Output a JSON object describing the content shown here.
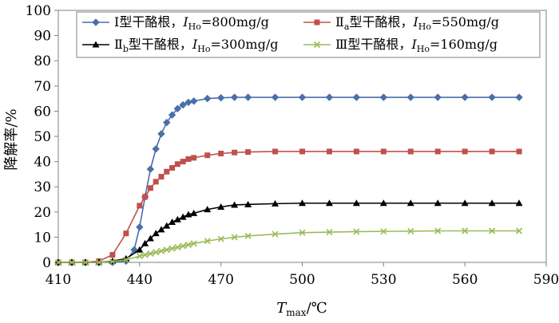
{
  "chart_data": {
    "type": "line",
    "xlabel": {
      "main": "T",
      "sub": "max",
      "unit": "/℃"
    },
    "ylabel": "降解率/%",
    "xlim": [
      410,
      590
    ],
    "ylim": [
      0,
      100
    ],
    "xticks": [
      410,
      440,
      470,
      500,
      530,
      560,
      590
    ],
    "yticks": [
      0,
      10,
      20,
      30,
      40,
      50,
      60,
      70,
      80,
      90,
      100
    ],
    "grid": false,
    "legend": "top",
    "series": [
      {
        "name": "Ⅰ型干酪根，IHo=800mg/g",
        "legend": {
          "pre": "Ⅰ型干酪根，",
          "var": "I",
          "sub": "Ho",
          "post": "=800mg/g"
        },
        "color": "#4a6fa9",
        "marker": "diamond",
        "x": [
          410,
          415,
          420,
          425,
          430,
          435,
          438,
          440,
          442,
          444,
          446,
          448,
          450,
          452,
          454,
          456,
          458,
          460,
          465,
          470,
          475,
          480,
          490,
          500,
          510,
          520,
          530,
          540,
          550,
          560,
          570,
          580
        ],
        "y": [
          0,
          0,
          0,
          0,
          0,
          0.5,
          5,
          14,
          26,
          37,
          45,
          51,
          55.5,
          58.5,
          61,
          62.5,
          63.5,
          64,
          65,
          65.3,
          65.5,
          65.5,
          65.5,
          65.5,
          65.5,
          65.5,
          65.5,
          65.5,
          65.5,
          65.5,
          65.5,
          65.5
        ]
      },
      {
        "name": "Ⅱa型干酪根，IHo=550mg/g",
        "legend": {
          "pre": "Ⅱ",
          "presub": "a",
          "pre2": "型干酪根，",
          "var": "I",
          "sub": "Ho",
          "post": "=550mg/g"
        },
        "color": "#c0504d",
        "marker": "square",
        "x": [
          410,
          415,
          420,
          425,
          430,
          435,
          440,
          442,
          444,
          446,
          448,
          450,
          452,
          454,
          456,
          458,
          460,
          465,
          470,
          475,
          480,
          490,
          500,
          510,
          520,
          530,
          540,
          550,
          560,
          570,
          580
        ],
        "y": [
          0,
          0,
          0,
          0.5,
          3,
          11.5,
          22.5,
          26,
          29.5,
          32,
          34,
          36,
          37.5,
          39,
          40,
          41,
          41.5,
          42.5,
          43.2,
          43.6,
          43.8,
          44,
          44,
          44,
          44,
          44,
          44,
          44,
          44,
          44,
          44
        ]
      },
      {
        "name": "Ⅱb型干酪根，IHo=300mg/g",
        "legend": {
          "pre": "Ⅱ",
          "presub": "b",
          "pre2": "型干酪根，",
          "var": "I",
          "sub": "Ho",
          "post": "=300mg/g"
        },
        "color": "#000000",
        "marker": "triangle",
        "x": [
          410,
          415,
          420,
          425,
          430,
          435,
          440,
          442,
          444,
          446,
          448,
          450,
          452,
          454,
          456,
          458,
          460,
          465,
          470,
          475,
          480,
          490,
          500,
          510,
          520,
          530,
          540,
          550,
          560,
          570,
          580
        ],
        "y": [
          0,
          0,
          0,
          0,
          0.5,
          1.5,
          5,
          7.5,
          9.5,
          11.5,
          13,
          14.5,
          16,
          17,
          18,
          19,
          19.5,
          21,
          22,
          22.8,
          23,
          23.3,
          23.5,
          23.5,
          23.5,
          23.5,
          23.5,
          23.5,
          23.5,
          23.5,
          23.5
        ]
      },
      {
        "name": "Ⅲ型干酪根，IHo=160mg/g",
        "legend": {
          "pre": "Ⅲ型干酪根，",
          "var": "I",
          "sub": "Ho",
          "post": "=160mg/g"
        },
        "color": "#9bbb59",
        "marker": "x",
        "x": [
          410,
          415,
          420,
          425,
          430,
          435,
          440,
          442,
          444,
          446,
          448,
          450,
          452,
          454,
          456,
          458,
          460,
          465,
          470,
          475,
          480,
          490,
          500,
          510,
          520,
          530,
          540,
          550,
          560,
          570,
          580
        ],
        "y": [
          0,
          0,
          0,
          0,
          0.3,
          1,
          2.5,
          3,
          3.5,
          4,
          4.5,
          5,
          5.5,
          6,
          6.5,
          7,
          7.5,
          8.5,
          9.3,
          10,
          10.5,
          11.2,
          11.8,
          12,
          12.2,
          12.3,
          12.4,
          12.5,
          12.5,
          12.5,
          12.5
        ]
      }
    ]
  }
}
